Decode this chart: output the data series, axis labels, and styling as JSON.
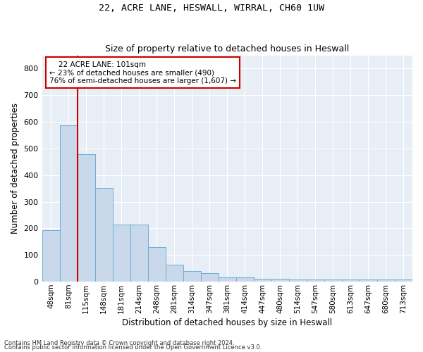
{
  "title1": "22, ACRE LANE, HESWALL, WIRRAL, CH60 1UW",
  "title2": "Size of property relative to detached houses in Heswall",
  "xlabel": "Distribution of detached houses by size in Heswall",
  "ylabel": "Number of detached properties",
  "categories": [
    "48sqm",
    "81sqm",
    "115sqm",
    "148sqm",
    "181sqm",
    "214sqm",
    "248sqm",
    "281sqm",
    "314sqm",
    "347sqm",
    "381sqm",
    "414sqm",
    "447sqm",
    "480sqm",
    "514sqm",
    "547sqm",
    "580sqm",
    "613sqm",
    "647sqm",
    "680sqm",
    "713sqm"
  ],
  "values": [
    193,
    588,
    480,
    352,
    215,
    215,
    130,
    63,
    40,
    33,
    16,
    16,
    10,
    10,
    8,
    8,
    8,
    8,
    8,
    8,
    8
  ],
  "bar_color": "#c9d9eb",
  "bar_edge_color": "#6aaed6",
  "vline_color": "#cc0000",
  "annotation_box_color": "#ffffff",
  "annotation_box_edge": "#cc0000",
  "annotation_line1": "22 ACRE LANE: 101sqm",
  "annotation_line2": "← 23% of detached houses are smaller (490)",
  "annotation_line3": "76% of semi-detached houses are larger (1,607) →",
  "background_color": "#e8eef5",
  "ylim": [
    0,
    850
  ],
  "yticks": [
    0,
    100,
    200,
    300,
    400,
    500,
    600,
    700,
    800
  ],
  "footer1": "Contains HM Land Registry data © Crown copyright and database right 2024.",
  "footer2": "Contains public sector information licensed under the Open Government Licence v3.0."
}
